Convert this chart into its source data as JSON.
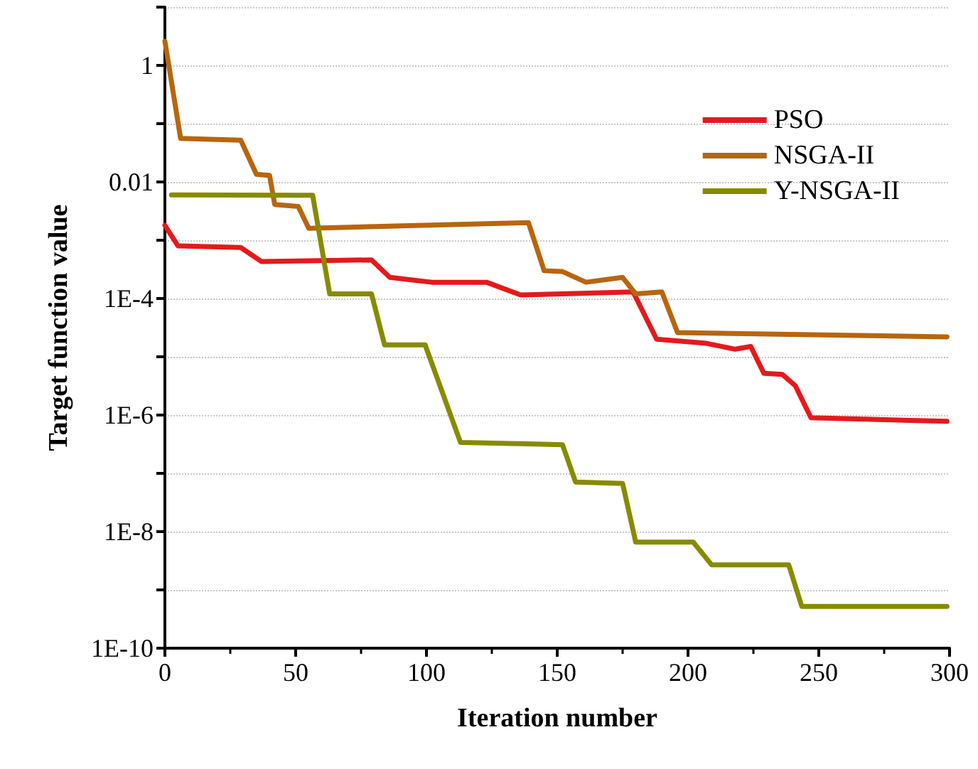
{
  "chart_data": {
    "type": "line",
    "xlabel": "Iteration number",
    "ylabel": "Target function value",
    "log": "y",
    "grid": "y",
    "legend": "top right",
    "marker": "none",
    "line_style": "solid",
    "xlim": [
      0,
      300
    ],
    "xticks": [
      0,
      50,
      100,
      150,
      200,
      250,
      300
    ],
    "ylim": [
      1e-10,
      10
    ],
    "yticks": [
      {
        "value": 1e-10,
        "label": "1E-10"
      },
      {
        "value": 1e-09,
        "label": null
      },
      {
        "value": 1e-08,
        "label": "1E-8"
      },
      {
        "value": 1e-07,
        "label": null
      },
      {
        "value": 1e-06,
        "label": "1E-6"
      },
      {
        "value": 1e-05,
        "label": null
      },
      {
        "value": 0.0001,
        "label": "1E-4"
      },
      {
        "value": 0.001,
        "label": null
      },
      {
        "value": 0.01,
        "label": "0.01"
      },
      {
        "value": 0.1,
        "label": null
      },
      {
        "value": 1,
        "label": "1"
      },
      {
        "value": 10,
        "label": null
      }
    ],
    "series": [
      {
        "name": "PSO",
        "color": "#e41a1c",
        "x": [
          0,
          5,
          29,
          37,
          79,
          86,
          102,
          123,
          136,
          179,
          188,
          207,
          218,
          224,
          229,
          236,
          241,
          247,
          299
        ],
        "values": [
          0.0018,
          0.0008,
          0.00075,
          0.00043,
          0.00046,
          0.00023,
          0.00019,
          0.00019,
          0.000115,
          0.00013,
          2e-05,
          1.7e-05,
          1.35e-05,
          1.5e-05,
          5.2e-06,
          5e-06,
          3.2e-06,
          9e-07,
          7.8e-07
        ]
      },
      {
        "name": "NSGA-II",
        "color": "#b8650e",
        "x": [
          0,
          6,
          29,
          35,
          40,
          42,
          51,
          55,
          139,
          145,
          152,
          161,
          175,
          180,
          190,
          196,
          299
        ],
        "values": [
          2.6,
          0.056,
          0.052,
          0.0135,
          0.013,
          0.0041,
          0.0038,
          0.0016,
          0.002,
          0.0003,
          0.00029,
          0.00019,
          0.00023,
          0.00012,
          0.00013,
          2.6e-05,
          2.2e-05
        ]
      },
      {
        "name": "Y-NSGA-II",
        "color": "#878b00",
        "x": [
          2.5,
          56.5,
          63,
          79,
          84,
          99.5,
          113,
          152,
          157,
          175,
          180,
          202,
          209,
          238.5,
          243.5,
          299
        ],
        "values": [
          0.006,
          0.0059,
          0.00012,
          0.00012,
          1.6e-05,
          1.6e-05,
          3.4e-07,
          3.1e-07,
          7.1e-08,
          6.7e-08,
          6.6e-09,
          6.6e-09,
          2.7e-09,
          2.7e-09,
          5.2e-10,
          5.2e-10
        ]
      }
    ]
  }
}
